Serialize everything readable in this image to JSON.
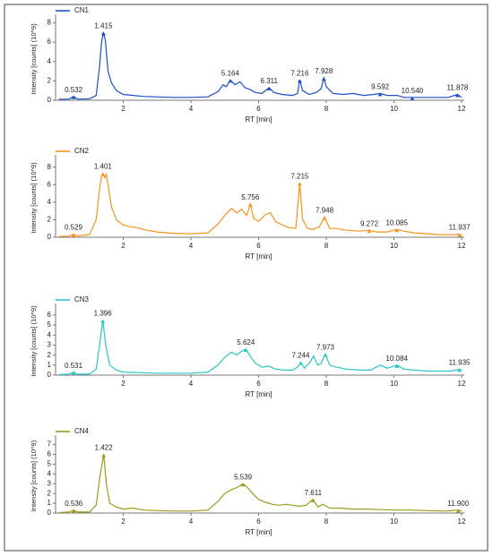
{
  "chart_data": [
    {
      "type": "line",
      "xlabel": "RT [min]",
      "ylabel": "Intensity [counts] (10^9)",
      "xlim": [
        0,
        12
      ],
      "xticks": [
        2,
        4,
        6,
        8,
        10,
        12
      ],
      "ylim": [
        0,
        8.5
      ],
      "yticks": [
        0,
        2,
        4,
        6,
        8
      ],
      "series": [
        {
          "name": "CN1",
          "color": "#1f4fc4",
          "x": [
            0.1,
            0.4,
            0.532,
            0.65,
            1.0,
            1.2,
            1.3,
            1.36,
            1.415,
            1.47,
            1.55,
            1.65,
            1.8,
            2.0,
            2.3,
            2.6,
            3.0,
            3.5,
            4.0,
            4.5,
            4.8,
            4.95,
            5.05,
            5.164,
            5.3,
            5.45,
            5.6,
            5.75,
            5.9,
            6.1,
            6.311,
            6.45,
            6.7,
            7.0,
            7.15,
            7.216,
            7.3,
            7.5,
            7.7,
            7.85,
            7.928,
            8.0,
            8.2,
            8.5,
            8.8,
            9.1,
            9.4,
            9.592,
            9.8,
            10.1,
            10.3,
            10.54,
            10.8,
            11.2,
            11.6,
            11.878,
            12.0
          ],
          "values": [
            0.1,
            0.12,
            0.4,
            0.12,
            0.15,
            0.5,
            3.5,
            6.0,
            7.0,
            6.2,
            3.0,
            1.8,
            1.0,
            0.6,
            0.5,
            0.4,
            0.35,
            0.3,
            0.3,
            0.35,
            0.9,
            1.6,
            1.4,
            2.1,
            1.6,
            1.9,
            1.3,
            1.1,
            0.8,
            0.7,
            1.3,
            0.8,
            0.6,
            0.5,
            0.7,
            2.1,
            1.0,
            0.6,
            0.8,
            1.2,
            2.3,
            1.4,
            0.7,
            0.6,
            0.7,
            0.5,
            0.6,
            0.7,
            0.5,
            0.5,
            0.3,
            0.3,
            0.3,
            0.3,
            0.3,
            0.6,
            0.3
          ]
        }
      ],
      "annotations": [
        {
          "value": 0.532,
          "label": "0.532"
        },
        {
          "value": 1.415,
          "label": "1.415"
        },
        {
          "value": 5.164,
          "label": "5.164"
        },
        {
          "value": 6.311,
          "label": "6.311"
        },
        {
          "value": 7.216,
          "label": "7.216"
        },
        {
          "value": 7.928,
          "label": "7.928"
        },
        {
          "value": 9.592,
          "label": "9.592"
        },
        {
          "value": 10.54,
          "label": "10.540"
        },
        {
          "value": 11.878,
          "label": "11.878"
        }
      ]
    },
    {
      "type": "line",
      "xlabel": "RT [min]",
      "ylabel": "Intensity [counts] (10^9)",
      "xlim": [
        0,
        12
      ],
      "xticks": [
        2,
        4,
        6,
        8,
        10,
        12
      ],
      "ylim": [
        0,
        9
      ],
      "yticks": [
        0,
        2,
        4,
        6,
        8
      ],
      "series": [
        {
          "name": "CN2",
          "color": "#f7931e",
          "x": [
            0.1,
            0.4,
            0.529,
            0.65,
            1.0,
            1.2,
            1.3,
            1.36,
            1.401,
            1.45,
            1.5,
            1.55,
            1.65,
            1.8,
            2.0,
            2.2,
            2.4,
            2.7,
            3.0,
            3.5,
            4.0,
            4.5,
            4.8,
            5.0,
            5.2,
            5.35,
            5.5,
            5.65,
            5.756,
            5.85,
            6.0,
            6.2,
            6.35,
            6.5,
            6.7,
            6.9,
            7.1,
            7.215,
            7.3,
            7.45,
            7.6,
            7.8,
            7.948,
            8.1,
            8.3,
            8.6,
            9.0,
            9.272,
            9.5,
            9.8,
            10.085,
            10.3,
            10.6,
            11.0,
            11.4,
            11.7,
            11.937,
            12.0
          ],
          "values": [
            0.1,
            0.12,
            0.35,
            0.15,
            0.3,
            2.0,
            5.5,
            7.0,
            7.3,
            6.8,
            7.2,
            6.0,
            3.5,
            2.0,
            1.4,
            1.2,
            1.1,
            0.8,
            0.6,
            0.45,
            0.4,
            0.5,
            1.5,
            2.5,
            3.3,
            2.8,
            3.2,
            2.5,
            3.8,
            2.2,
            1.8,
            2.6,
            2.8,
            1.8,
            1.4,
            1.1,
            1.0,
            6.2,
            2.0,
            1.0,
            0.9,
            1.2,
            2.3,
            1.0,
            1.0,
            0.8,
            0.7,
            0.8,
            0.6,
            0.6,
            0.9,
            0.7,
            0.5,
            0.4,
            0.3,
            0.3,
            0.35,
            0.2
          ]
        }
      ],
      "annotations": [
        {
          "value": 0.529,
          "label": "0.529"
        },
        {
          "value": 1.401,
          "label": "1.401"
        },
        {
          "value": 5.756,
          "label": "5.756"
        },
        {
          "value": 7.215,
          "label": "7.215"
        },
        {
          "value": 7.948,
          "label": "7.948"
        },
        {
          "value": 9.272,
          "label": "9.272"
        },
        {
          "value": 10.085,
          "label": "10.085"
        },
        {
          "value": 11.937,
          "label": "11.937"
        }
      ]
    },
    {
      "type": "line",
      "xlabel": "RT [min]",
      "ylabel": "Intensity [counts] (10^9)",
      "xlim": [
        0,
        12
      ],
      "xticks": [
        2,
        4,
        6,
        8,
        10,
        12
      ],
      "ylim": [
        0,
        6.8
      ],
      "yticks": [
        0,
        1,
        2,
        3,
        4,
        5,
        6
      ],
      "series": [
        {
          "name": "CN3",
          "color": "#2cc5c8",
          "x": [
            0.1,
            0.4,
            0.531,
            0.65,
            1.0,
            1.2,
            1.3,
            1.396,
            1.48,
            1.6,
            1.8,
            2.0,
            2.5,
            3.0,
            3.5,
            4.0,
            4.5,
            4.8,
            5.0,
            5.2,
            5.35,
            5.5,
            5.624,
            5.75,
            5.9,
            6.1,
            6.3,
            6.5,
            6.8,
            7.0,
            7.15,
            7.244,
            7.35,
            7.5,
            7.62,
            7.75,
            7.85,
            7.973,
            8.1,
            8.3,
            8.6,
            9.0,
            9.3,
            9.6,
            9.8,
            10.084,
            10.3,
            10.6,
            11.0,
            11.4,
            11.7,
            11.935,
            12.0
          ],
          "values": [
            0.05,
            0.1,
            0.3,
            0.1,
            0.1,
            0.6,
            3.0,
            5.5,
            3.0,
            1.0,
            0.5,
            0.3,
            0.25,
            0.2,
            0.2,
            0.2,
            0.3,
            1.0,
            1.8,
            2.3,
            2.0,
            2.4,
            2.6,
            1.9,
            1.2,
            0.8,
            0.9,
            0.6,
            0.5,
            0.5,
            0.8,
            1.3,
            0.7,
            1.2,
            1.9,
            1.0,
            1.2,
            2.1,
            1.0,
            0.8,
            0.6,
            0.5,
            0.5,
            1.0,
            0.7,
            1.0,
            0.6,
            0.5,
            0.4,
            0.4,
            0.4,
            0.6,
            0.45
          ]
        }
      ],
      "annotations": [
        {
          "value": 0.531,
          "label": "0.531"
        },
        {
          "value": 1.396,
          "label": "1.396"
        },
        {
          "value": 5.624,
          "label": "5.624"
        },
        {
          "value": 7.244,
          "label": "7.244"
        },
        {
          "value": 7.973,
          "label": "7.973"
        },
        {
          "value": 10.084,
          "label": "10.084"
        },
        {
          "value": 11.935,
          "label": "11.935"
        }
      ]
    },
    {
      "type": "line",
      "xlabel": "RT [min]",
      "ylabel": "Intensity [counts] (10^9)",
      "xlim": [
        0,
        12
      ],
      "xticks": [
        2,
        4,
        6,
        8,
        10,
        12
      ],
      "ylim": [
        0,
        7.6
      ],
      "yticks": [
        0,
        1,
        2,
        3,
        4,
        5,
        6,
        7
      ],
      "series": [
        {
          "name": "CN4",
          "color": "#9c9a1e",
          "x": [
            0.1,
            0.4,
            0.536,
            0.65,
            1.0,
            1.2,
            1.3,
            1.422,
            1.5,
            1.6,
            1.8,
            2.0,
            2.3,
            2.6,
            3.0,
            3.5,
            4.0,
            4.5,
            4.8,
            5.0,
            5.2,
            5.35,
            5.539,
            5.7,
            5.85,
            6.0,
            6.2,
            6.4,
            6.6,
            6.8,
            7.0,
            7.2,
            7.4,
            7.611,
            7.75,
            7.9,
            8.1,
            8.4,
            8.8,
            9.2,
            9.6,
            10.0,
            10.5,
            11.0,
            11.5,
            11.9,
            12.0
          ],
          "values": [
            0.05,
            0.1,
            0.3,
            0.1,
            0.1,
            0.8,
            3.5,
            6.0,
            3.0,
            1.0,
            0.6,
            0.4,
            0.5,
            0.3,
            0.25,
            0.2,
            0.2,
            0.3,
            1.2,
            2.0,
            2.4,
            2.6,
            3.0,
            2.5,
            1.9,
            1.4,
            1.1,
            0.9,
            0.8,
            0.9,
            0.8,
            0.7,
            0.8,
            1.4,
            0.6,
            0.9,
            0.5,
            0.5,
            0.4,
            0.4,
            0.35,
            0.3,
            0.3,
            0.25,
            0.2,
            0.3,
            0.2
          ]
        }
      ],
      "annotations": [
        {
          "value": 0.536,
          "label": "0.536"
        },
        {
          "value": 1.422,
          "label": "1.422"
        },
        {
          "value": 5.539,
          "label": "5.539"
        },
        {
          "value": 7.611,
          "label": "7.611"
        },
        {
          "value": 11.9,
          "label": "11.900"
        }
      ]
    }
  ]
}
